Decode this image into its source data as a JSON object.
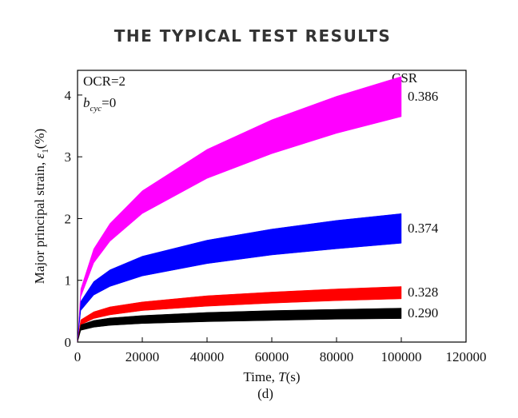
{
  "header": {
    "title": "THE TYPICAL TEST RESULTS"
  },
  "chart_data": {
    "type": "band",
    "x": [
      0,
      1000,
      5000,
      10000,
      20000,
      40000,
      60000,
      80000,
      100000
    ],
    "series": [
      {
        "name": "0.386",
        "color": "#ff00ff",
        "upper": [
          0,
          0.86,
          1.51,
          1.92,
          2.45,
          3.12,
          3.6,
          3.98,
          4.3
        ],
        "lower": [
          0,
          0.73,
          1.28,
          1.63,
          2.08,
          2.65,
          3.05,
          3.38,
          3.65
        ]
      },
      {
        "name": "0.374",
        "color": "#0000ff",
        "upper": [
          0,
          0.66,
          0.98,
          1.17,
          1.39,
          1.65,
          1.83,
          1.97,
          2.08
        ],
        "lower": [
          0,
          0.51,
          0.76,
          0.9,
          1.07,
          1.27,
          1.41,
          1.51,
          1.6
        ]
      },
      {
        "name": "0.328",
        "color": "#ff0000",
        "upper": [
          0,
          0.36,
          0.49,
          0.57,
          0.65,
          0.75,
          0.81,
          0.86,
          0.9
        ],
        "lower": [
          0,
          0.28,
          0.38,
          0.44,
          0.51,
          0.58,
          0.63,
          0.67,
          0.7
        ]
      },
      {
        "name": "0.290",
        "color": "#000000",
        "upper": [
          0,
          0.28,
          0.35,
          0.39,
          0.43,
          0.48,
          0.51,
          0.53,
          0.55
        ],
        "lower": [
          0,
          0.19,
          0.24,
          0.27,
          0.3,
          0.33,
          0.35,
          0.37,
          0.38
        ]
      }
    ],
    "legend_title": "CSR",
    "annotations": {
      "ocr": "OCR=2",
      "b": "b",
      "b_sub": "cyc",
      "b_rest": "=0"
    },
    "xlabel": {
      "text": "Time, ",
      "italic": "T",
      "rest": "(s)"
    },
    "ylabel": {
      "text": "Major principal strain, ",
      "italic": "ε",
      "sub": "1",
      "rest": "(%)"
    },
    "caption": "(d)",
    "xlim": [
      0,
      120000
    ],
    "xticks": [
      0,
      20000,
      40000,
      60000,
      80000,
      100000,
      120000
    ],
    "ylim": [
      0,
      4.4
    ],
    "yticks": [
      0,
      1,
      2,
      3,
      4
    ]
  }
}
